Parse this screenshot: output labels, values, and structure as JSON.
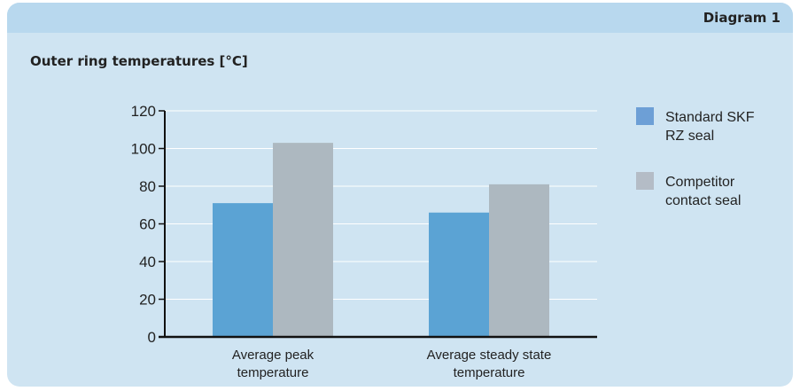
{
  "header": {
    "diagram_label": "Diagram 1"
  },
  "chart_data": {
    "type": "bar",
    "title": "Outer ring temperatures [°C]",
    "categories": [
      [
        "Average peak",
        "temperature"
      ],
      [
        "Average steady state",
        "temperature"
      ]
    ],
    "series": [
      {
        "name": "Standard SKF RZ seal",
        "legend_lines": [
          "Standard SKF",
          "RZ seal"
        ],
        "color": "#5ba3d4",
        "legend_color": "#6d9fd6",
        "values": [
          71,
          66
        ]
      },
      {
        "name": "Competitor contact seal",
        "legend_lines": [
          "Competitor",
          "contact seal"
        ],
        "color": "#adb8c0",
        "legend_color": "#b4bcc6",
        "values": [
          103,
          81
        ]
      }
    ],
    "yticks": [
      0,
      20,
      40,
      60,
      80,
      100,
      120
    ],
    "ylim": [
      0,
      120
    ],
    "grid": true,
    "legend_position": "right"
  }
}
